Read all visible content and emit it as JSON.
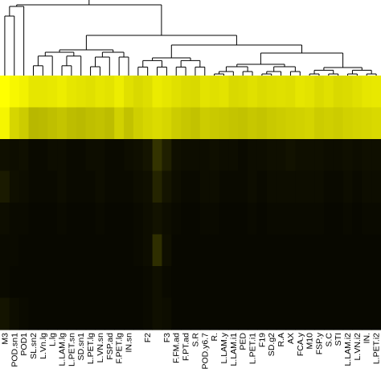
{
  "chart_data": {
    "type": "heatmap",
    "title": "",
    "xlabel": "",
    "ylabel": "",
    "colors": {
      "low": "#000000",
      "high": "#ffff00",
      "line": "#000000"
    },
    "dendrogram": "top",
    "labels": [
      {
        "column": 0,
        "text": "M3"
      },
      {
        "column": 1,
        "text": "POD.sn1"
      },
      {
        "column": 2,
        "text": "POD1"
      },
      {
        "column": 3,
        "text": "SL.sn2"
      },
      {
        "column": 4,
        "text": "L.Vn.lg"
      },
      {
        "column": 5,
        "text": "L.lg"
      },
      {
        "column": 6,
        "text": "L.LAM.lg"
      },
      {
        "column": 7,
        "text": "L.PET.sn"
      },
      {
        "column": 8,
        "text": "SD.sn1"
      },
      {
        "column": 9,
        "text": "L.PET.lg"
      },
      {
        "column": 10,
        "text": "L.VN.sn"
      },
      {
        "column": 11,
        "text": "FSP.ad"
      },
      {
        "column": 12,
        "text": "F.PET.lg"
      },
      {
        "column": 13,
        "text": "IN.sn"
      },
      {
        "column": 15,
        "text": "F2"
      },
      {
        "column": 17,
        "text": "F3"
      },
      {
        "column": 18,
        "text": "F.FM.ad"
      },
      {
        "column": 19,
        "text": "F.PT.ad"
      },
      {
        "column": 20,
        "text": "S.R"
      },
      {
        "column": 21,
        "text": "POD.y6.7"
      },
      {
        "column": 22,
        "text": "R."
      },
      {
        "column": 23,
        "text": "L.LAM.y"
      },
      {
        "column": 24,
        "text": "L.LAM.i1"
      },
      {
        "column": 25,
        "text": "PED"
      },
      {
        "column": 26,
        "text": "L.PET.i1"
      },
      {
        "column": 27,
        "text": "F19"
      },
      {
        "column": 28,
        "text": "SD.g2"
      },
      {
        "column": 29,
        "text": "R.A"
      },
      {
        "column": 30,
        "text": "AX"
      },
      {
        "column": 31,
        "text": "FCA.y"
      },
      {
        "column": 32,
        "text": "M10"
      },
      {
        "column": 33,
        "text": "FSP.y"
      },
      {
        "column": 34,
        "text": "S.C"
      },
      {
        "column": 35,
        "text": "STI"
      },
      {
        "column": 36,
        "text": "L.LAM.i2"
      },
      {
        "column": 37,
        "text": "L.VN.i2"
      },
      {
        "column": 38,
        "text": "IN."
      },
      {
        "column": 39,
        "text": "L.PET.i2"
      }
    ],
    "values": [
      [
        1.0,
        0.97,
        0.95,
        0.9,
        0.9,
        0.91,
        0.93,
        0.9,
        0.89,
        0.88,
        0.9,
        0.89,
        0.93,
        0.88,
        0.85,
        0.87,
        0.92,
        0.9,
        0.88,
        0.86,
        0.85,
        0.89,
        0.88,
        0.89,
        0.85,
        0.86,
        0.88,
        0.86,
        0.87,
        0.88,
        0.87,
        0.9,
        0.89,
        0.86,
        0.88,
        0.85,
        0.86,
        0.88,
        0.9,
        0.91
      ],
      [
        0.96,
        0.84,
        0.8,
        0.72,
        0.73,
        0.75,
        0.77,
        0.74,
        0.73,
        0.75,
        0.76,
        0.74,
        0.82,
        0.76,
        0.81,
        0.84,
        0.86,
        0.84,
        0.8,
        0.78,
        0.76,
        0.8,
        0.79,
        0.78,
        0.77,
        0.76,
        0.78,
        0.77,
        0.79,
        0.8,
        0.81,
        0.82,
        0.83,
        0.8,
        0.81,
        0.8,
        0.82,
        0.83,
        0.84,
        0.85
      ],
      [
        0.06,
        0.05,
        0.06,
        0.04,
        0.04,
        0.05,
        0.05,
        0.04,
        0.04,
        0.05,
        0.05,
        0.04,
        0.04,
        0.05,
        0.06,
        0.08,
        0.2,
        0.12,
        0.06,
        0.05,
        0.05,
        0.05,
        0.06,
        0.05,
        0.05,
        0.04,
        0.05,
        0.05,
        0.06,
        0.06,
        0.07,
        0.06,
        0.06,
        0.06,
        0.05,
        0.05,
        0.06,
        0.05,
        0.06,
        0.06
      ],
      [
        0.1,
        0.06,
        0.05,
        0.04,
        0.04,
        0.04,
        0.05,
        0.04,
        0.04,
        0.04,
        0.05,
        0.04,
        0.04,
        0.04,
        0.05,
        0.06,
        0.14,
        0.08,
        0.05,
        0.04,
        0.04,
        0.05,
        0.05,
        0.04,
        0.04,
        0.04,
        0.05,
        0.04,
        0.05,
        0.05,
        0.05,
        0.05,
        0.05,
        0.05,
        0.04,
        0.04,
        0.05,
        0.04,
        0.05,
        0.05
      ],
      [
        0.05,
        0.04,
        0.04,
        0.03,
        0.03,
        0.03,
        0.04,
        0.03,
        0.03,
        0.03,
        0.04,
        0.03,
        0.03,
        0.03,
        0.04,
        0.05,
        0.07,
        0.05,
        0.04,
        0.03,
        0.03,
        0.04,
        0.04,
        0.03,
        0.03,
        0.03,
        0.04,
        0.03,
        0.04,
        0.04,
        0.04,
        0.04,
        0.04,
        0.04,
        0.03,
        0.03,
        0.04,
        0.03,
        0.04,
        0.04
      ],
      [
        0.04,
        0.04,
        0.03,
        0.03,
        0.03,
        0.03,
        0.03,
        0.03,
        0.03,
        0.03,
        0.03,
        0.03,
        0.03,
        0.03,
        0.04,
        0.05,
        0.18,
        0.06,
        0.03,
        0.03,
        0.03,
        0.03,
        0.03,
        0.03,
        0.03,
        0.03,
        0.03,
        0.03,
        0.03,
        0.03,
        0.03,
        0.03,
        0.03,
        0.03,
        0.03,
        0.03,
        0.03,
        0.03,
        0.03,
        0.03
      ],
      [
        0.04,
        0.03,
        0.03,
        0.03,
        0.03,
        0.03,
        0.03,
        0.03,
        0.03,
        0.03,
        0.03,
        0.03,
        0.03,
        0.03,
        0.03,
        0.04,
        0.06,
        0.04,
        0.03,
        0.03,
        0.03,
        0.03,
        0.03,
        0.03,
        0.03,
        0.03,
        0.03,
        0.03,
        0.03,
        0.03,
        0.03,
        0.03,
        0.03,
        0.03,
        0.03,
        0.03,
        0.03,
        0.03,
        0.03,
        0.03
      ],
      [
        0.08,
        0.05,
        0.04,
        0.03,
        0.03,
        0.03,
        0.03,
        0.03,
        0.03,
        0.03,
        0.03,
        0.03,
        0.03,
        0.03,
        0.03,
        0.04,
        0.06,
        0.05,
        0.03,
        0.03,
        0.03,
        0.03,
        0.03,
        0.03,
        0.03,
        0.03,
        0.03,
        0.03,
        0.03,
        0.03,
        0.03,
        0.03,
        0.03,
        0.03,
        0.03,
        0.03,
        0.03,
        0.03,
        0.03,
        0.03
      ]
    ]
  }
}
